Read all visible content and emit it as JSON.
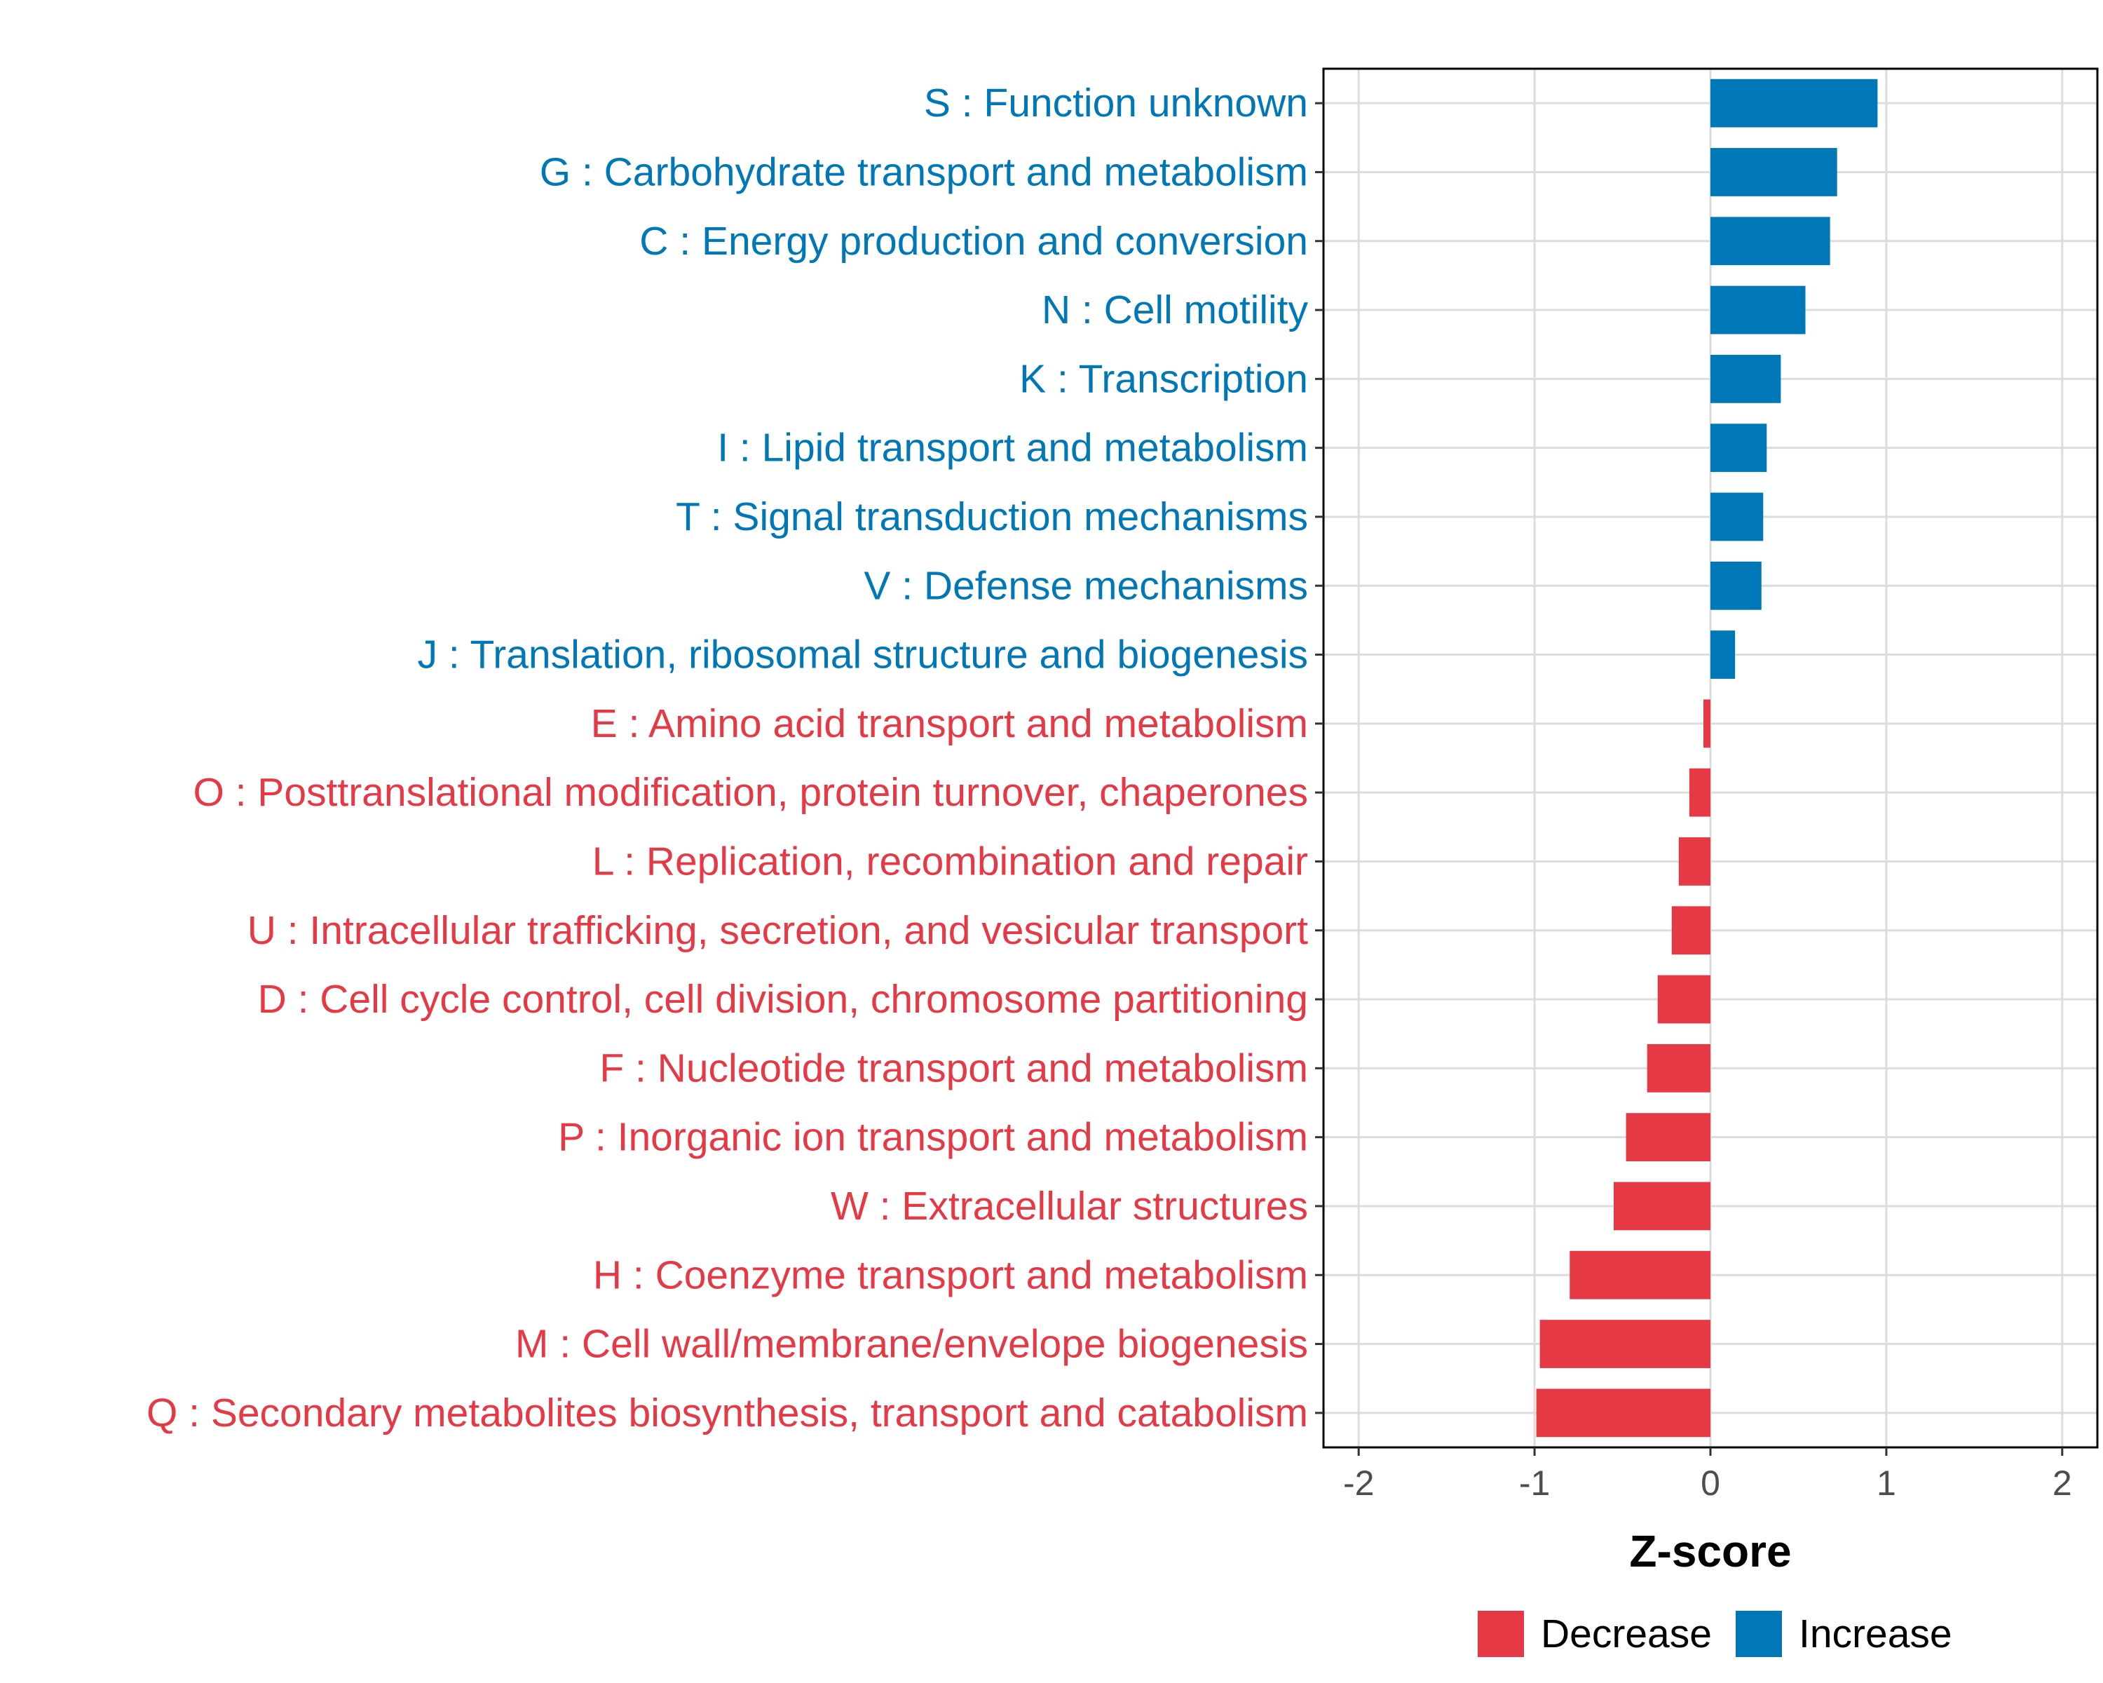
{
  "chart_data": {
    "type": "bar",
    "orientation": "horizontal",
    "xlabel": "Z-score",
    "ylabel": "",
    "xlim": [
      -2.2,
      2.2
    ],
    "xticks": [
      {
        "value": -2,
        "label": "-2"
      },
      {
        "value": -1,
        "label": "-1"
      },
      {
        "value": 0,
        "label": "0"
      },
      {
        "value": 1,
        "label": "1"
      },
      {
        "value": 2,
        "label": "2"
      }
    ],
    "grid": true,
    "legend": {
      "position": "bottom",
      "entries": [
        {
          "key": "Decrease",
          "label": "Decrease",
          "color": "#E63946"
        },
        {
          "key": "Increase",
          "label": "Increase",
          "color": "#0077B6"
        }
      ]
    },
    "categories": [
      {
        "label": "S : Function unknown",
        "value": 0.95,
        "group": "Increase"
      },
      {
        "label": "G : Carbohydrate transport and metabolism",
        "value": 0.72,
        "group": "Increase"
      },
      {
        "label": "C : Energy production and conversion",
        "value": 0.68,
        "group": "Increase"
      },
      {
        "label": "N : Cell motility",
        "value": 0.54,
        "group": "Increase"
      },
      {
        "label": "K : Transcription",
        "value": 0.4,
        "group": "Increase"
      },
      {
        "label": "I : Lipid transport and metabolism",
        "value": 0.32,
        "group": "Increase"
      },
      {
        "label": "T : Signal transduction mechanisms",
        "value": 0.3,
        "group": "Increase"
      },
      {
        "label": "V : Defense mechanisms",
        "value": 0.29,
        "group": "Increase"
      },
      {
        "label": "J : Translation, ribosomal structure and biogenesis",
        "value": 0.14,
        "group": "Increase"
      },
      {
        "label": "E : Amino acid transport and metabolism",
        "value": -0.04,
        "group": "Decrease"
      },
      {
        "label": "O : Posttranslational modification, protein turnover, chaperones",
        "value": -0.12,
        "group": "Decrease"
      },
      {
        "label": "L : Replication, recombination and repair",
        "value": -0.18,
        "group": "Decrease"
      },
      {
        "label": "U : Intracellular trafficking, secretion, and vesicular transport",
        "value": -0.22,
        "group": "Decrease"
      },
      {
        "label": "D : Cell cycle control, cell division, chromosome partitioning",
        "value": -0.3,
        "group": "Decrease"
      },
      {
        "label": "F : Nucleotide transport and metabolism",
        "value": -0.36,
        "group": "Decrease"
      },
      {
        "label": "P : Inorganic ion transport and metabolism",
        "value": -0.48,
        "group": "Decrease"
      },
      {
        "label": "W : Extracellular structures",
        "value": -0.55,
        "group": "Decrease"
      },
      {
        "label": "H : Coenzyme transport and metabolism",
        "value": -0.8,
        "group": "Decrease"
      },
      {
        "label": "M : Cell wall/membrane/envelope biogenesis",
        "value": -0.97,
        "group": "Decrease"
      },
      {
        "label": "Q : Secondary metabolites biosynthesis, transport and catabolism",
        "value": -0.99,
        "group": "Decrease"
      }
    ]
  }
}
